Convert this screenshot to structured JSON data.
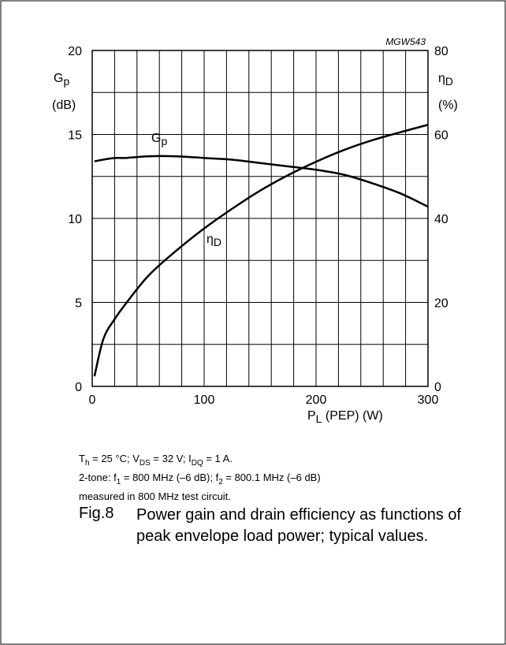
{
  "chart_data": {
    "type": "line",
    "code": "MGW543",
    "ylabel": [
      "G",
      "p"
    ],
    "ylabel_unit": "(dB)",
    "y2label": [
      "η",
      "D"
    ],
    "y2label_unit": "(%)",
    "xlabel": [
      "P",
      "L",
      " (PEP) (W)"
    ],
    "x": [
      2,
      10,
      20,
      30,
      50,
      75,
      100,
      125,
      150,
      175,
      200,
      225,
      250,
      275,
      300
    ],
    "series": [
      {
        "name": [
          "G",
          "p"
        ],
        "color": "#000000",
        "axis": "y",
        "values": [
          13.4,
          13.5,
          13.6,
          13.6,
          13.7,
          13.7,
          13.6,
          13.5,
          13.3,
          13.1,
          12.9,
          12.6,
          12.1,
          11.5,
          10.7
        ]
      },
      {
        "name": [
          "η",
          "D"
        ],
        "color": "#000000",
        "axis": "y2",
        "values": [
          2.4,
          11.3,
          16,
          19.7,
          26.3,
          32.3,
          37.6,
          42.3,
          46.6,
          50.3,
          53.5,
          56.3,
          58.6,
          60.5,
          62.3
        ]
      }
    ],
    "xlim": [
      0,
      300
    ],
    "xticks": [
      0,
      100,
      200,
      300
    ],
    "xgrid": [
      0,
      20,
      40,
      60,
      80,
      100,
      120,
      140,
      160,
      180,
      200,
      220,
      240,
      260,
      280,
      300
    ],
    "ylim": [
      0,
      20
    ],
    "yticks": [
      0,
      5,
      10,
      15,
      20
    ],
    "ygrid": [
      0,
      2.5,
      5,
      7.5,
      10,
      12.5,
      15,
      17.5,
      20
    ],
    "y2lim": [
      0,
      80
    ],
    "y2ticks": [
      0,
      20,
      40,
      60,
      80
    ],
    "grid": true,
    "notes": [
      [
        "T",
        "h",
        " = 25 °C; V",
        "DS",
        " = 32 V; I",
        "DQ",
        " = 1 A."
      ],
      [
        "2-tone: f",
        "1",
        " = 800 MHz (–6 dB); f",
        "2",
        " = 800.1 MHz (–6 dB)"
      ],
      [
        "measured in 800 MHz test circuit."
      ]
    ],
    "figure_number": "Fig.8",
    "caption": "Power gain and drain efficiency as functions of peak envelope load power; typical values."
  }
}
